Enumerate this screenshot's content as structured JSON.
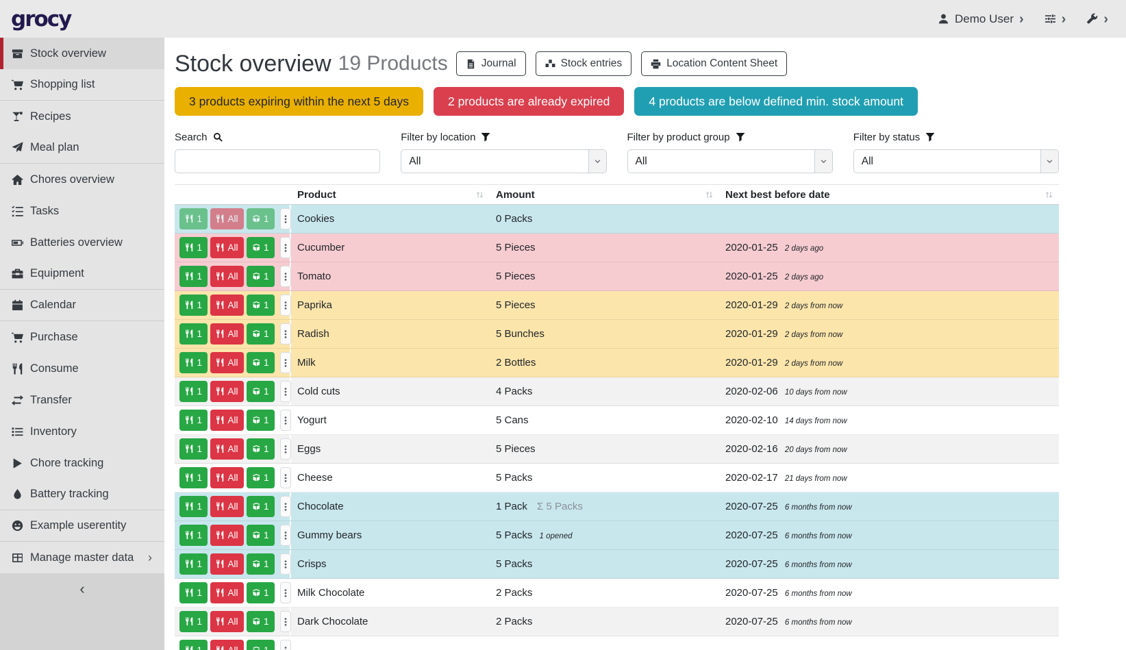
{
  "header": {
    "logo": "grocy",
    "user_label": "Demo User"
  },
  "sidebar": {
    "items": [
      {
        "label": "Stock overview",
        "icon": "box",
        "active": true
      },
      {
        "label": "Shopping list",
        "icon": "cart",
        "divider_after": true
      },
      {
        "label": "Recipes",
        "icon": "cocktail"
      },
      {
        "label": "Meal plan",
        "icon": "paper-plane",
        "divider_after": true
      },
      {
        "label": "Chores overview",
        "icon": "home"
      },
      {
        "label": "Tasks",
        "icon": "tasks"
      },
      {
        "label": "Batteries overview",
        "icon": "battery"
      },
      {
        "label": "Equipment",
        "icon": "toolbox",
        "divider_after": true
      },
      {
        "label": "Calendar",
        "icon": "calendar",
        "divider_after": true
      },
      {
        "label": "Purchase",
        "icon": "cart"
      },
      {
        "label": "Consume",
        "icon": "utensils"
      },
      {
        "label": "Transfer",
        "icon": "exchange"
      },
      {
        "label": "Inventory",
        "icon": "list"
      },
      {
        "label": "Chore tracking",
        "icon": "play"
      },
      {
        "label": "Battery tracking",
        "icon": "tint",
        "divider_after": true
      },
      {
        "label": "Example userentity",
        "icon": "smile",
        "divider_after": true
      },
      {
        "label": "Manage master data",
        "icon": "table",
        "chevron": true
      }
    ],
    "collapse_glyph": "‹"
  },
  "page": {
    "title": "Stock overview",
    "subtitle": "19 Products",
    "toolbar": [
      {
        "label": "Journal",
        "icon": "file"
      },
      {
        "label": "Stock entries",
        "icon": "cubes"
      },
      {
        "label": "Location Content Sheet",
        "icon": "print"
      }
    ],
    "banners": [
      {
        "text": "3 products expiring within the next 5 days",
        "color": "#eab000",
        "text_color": "#212529"
      },
      {
        "text": "2 products are already expired",
        "color": "#da3f4e",
        "text_color": "#ffffff"
      },
      {
        "text": "4 products are below defined min. stock amount",
        "color": "#219fb2",
        "text_color": "#ffffff"
      }
    ],
    "filters": [
      {
        "label": "Search",
        "icon": "search",
        "is_input": true,
        "value": ""
      },
      {
        "label": "Filter by location",
        "icon": "filter",
        "is_select": true,
        "value": "All"
      },
      {
        "label": "Filter by product group",
        "icon": "filter",
        "is_select": true,
        "value": "All"
      },
      {
        "label": "Filter by status",
        "icon": "filter",
        "is_select": true,
        "value": "All"
      }
    ]
  },
  "table": {
    "columns": [
      {
        "label": "Product"
      },
      {
        "label": "Amount"
      },
      {
        "label": "Next best before date"
      }
    ],
    "actions": {
      "consume_one": "1",
      "consume_all": "All",
      "open_one": "1"
    },
    "rows": [
      {
        "product": "Cookies",
        "amount": "0 Packs",
        "date": "",
        "date_relative": "",
        "status": "belowmin",
        "muted": true
      },
      {
        "product": "Cucumber",
        "amount": "5 Pieces",
        "date": "2020-01-25",
        "date_relative": "2 days ago",
        "status": "expired"
      },
      {
        "product": "Tomato",
        "amount": "5 Pieces",
        "date": "2020-01-25",
        "date_relative": "2 days ago",
        "status": "expired"
      },
      {
        "product": "Paprika",
        "amount": "5 Pieces",
        "date": "2020-01-29",
        "date_relative": "2 days from now",
        "status": "expiring"
      },
      {
        "product": "Radish",
        "amount": "5 Bunches",
        "date": "2020-01-29",
        "date_relative": "2 days from now",
        "status": "expiring"
      },
      {
        "product": "Milk",
        "amount": "2 Bottles",
        "date": "2020-01-29",
        "date_relative": "2 days from now",
        "status": "expiring"
      },
      {
        "product": "Cold cuts",
        "amount": "4 Packs",
        "date": "2020-02-06",
        "date_relative": "10 days from now",
        "status": "stripe"
      },
      {
        "product": "Yogurt",
        "amount": "5 Cans",
        "date": "2020-02-10",
        "date_relative": "14 days from now",
        "status": "plain"
      },
      {
        "product": "Eggs",
        "amount": "5 Pieces",
        "date": "2020-02-16",
        "date_relative": "20 days from now",
        "status": "stripe"
      },
      {
        "product": "Cheese",
        "amount": "5 Packs",
        "date": "2020-02-17",
        "date_relative": "21 days from now",
        "status": "plain"
      },
      {
        "product": "Chocolate",
        "amount": "1 Pack",
        "amount_sum": "Σ 5 Packs",
        "date": "2020-07-25",
        "date_relative": "6 months from now",
        "status": "belowmin"
      },
      {
        "product": "Gummy bears",
        "amount": "5 Packs",
        "amount_opened": "1 opened",
        "date": "2020-07-25",
        "date_relative": "6 months from now",
        "status": "belowmin"
      },
      {
        "product": "Crisps",
        "amount": "5 Packs",
        "date": "2020-07-25",
        "date_relative": "6 months from now",
        "status": "belowmin"
      },
      {
        "product": "Milk Chocolate",
        "amount": "2 Packs",
        "date": "2020-07-25",
        "date_relative": "6 months from now",
        "status": "plain"
      },
      {
        "product": "Dark Chocolate",
        "amount": "2 Packs",
        "date": "2020-07-25",
        "date_relative": "6 months from now",
        "status": "stripe"
      },
      {
        "product": "",
        "amount": "",
        "date": "",
        "date_relative": "",
        "status": "plain",
        "partial": true
      }
    ]
  },
  "colors": {
    "topbar_bg": "#e9e9e9",
    "sidebar_bg": "#e4e4e4",
    "sidebar_active_bg": "#d8d8d8",
    "sidebar_accent_red": "#b0232e",
    "logo_navy": "#221a4e",
    "banner_yellow": "#eab000",
    "banner_red": "#da3f4e",
    "banner_teal": "#219fb2",
    "row_expired_pink": "#f6ccd1",
    "row_expiring_yellow": "#fbe5ab",
    "row_below_min_blue": "#c8e7ed",
    "row_stripe_gray": "#f2f2f2",
    "button_green": "#28a745",
    "button_red": "#dc3545"
  }
}
